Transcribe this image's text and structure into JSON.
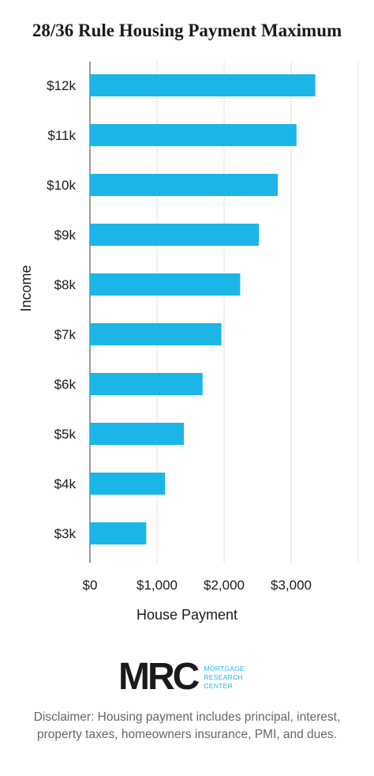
{
  "chart_data": {
    "type": "bar",
    "orientation": "horizontal",
    "title": "28/36 Rule Housing Payment Maximum",
    "xlabel": "House Payment",
    "ylabel": "Income",
    "categories": [
      "$12k",
      "$11k",
      "$10k",
      "$9k",
      "$8k",
      "$7k",
      "$6k",
      "$5k",
      "$4k",
      "$3k"
    ],
    "values": [
      3360,
      3080,
      2800,
      2520,
      2240,
      1960,
      1680,
      1400,
      1120,
      840
    ],
    "x_ticks": [
      0,
      1000,
      2000,
      3000
    ],
    "x_tick_labels": [
      "$0",
      "$1,000",
      "$2,000",
      "$3,000"
    ],
    "xlim": [
      0,
      4000
    ],
    "grid": "vertical",
    "bar_color": "#1bb5e8"
  },
  "logo": {
    "mark": "MRC",
    "line1": "MORTGAGE",
    "line2": "RESEARCH",
    "line3": "CENTER"
  },
  "disclaimer": "Disclaimer: Housing payment includes principal, interest, property taxes, homeowners insurance, PMI, and dues."
}
